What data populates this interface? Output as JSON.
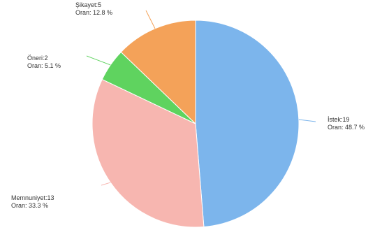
{
  "chart_data": {
    "type": "pie",
    "title": "",
    "slices": [
      {
        "name": "İstek",
        "value": 19,
        "percent_label": "Oran: 48.7 %",
        "label_line1": "İstek:19",
        "color": "#7cb5ec"
      },
      {
        "name": "Memnuniyet",
        "value": 13,
        "percent_label": "Oran: 33.3 %",
        "label_line1": "Memnuniyet:13",
        "color": "#f7b6b0"
      },
      {
        "name": "Öneri",
        "value": 2,
        "percent_label": "Oran: 5.1 %",
        "label_line1": "Öneri:2",
        "color": "#5fd35f"
      },
      {
        "name": "Şikayet",
        "value": 5,
        "percent_label": "Oran: 12.8 %",
        "label_line1": "Şikayet:5",
        "color": "#f4a259"
      }
    ],
    "legend": "none",
    "label_style": "connector-lines"
  }
}
